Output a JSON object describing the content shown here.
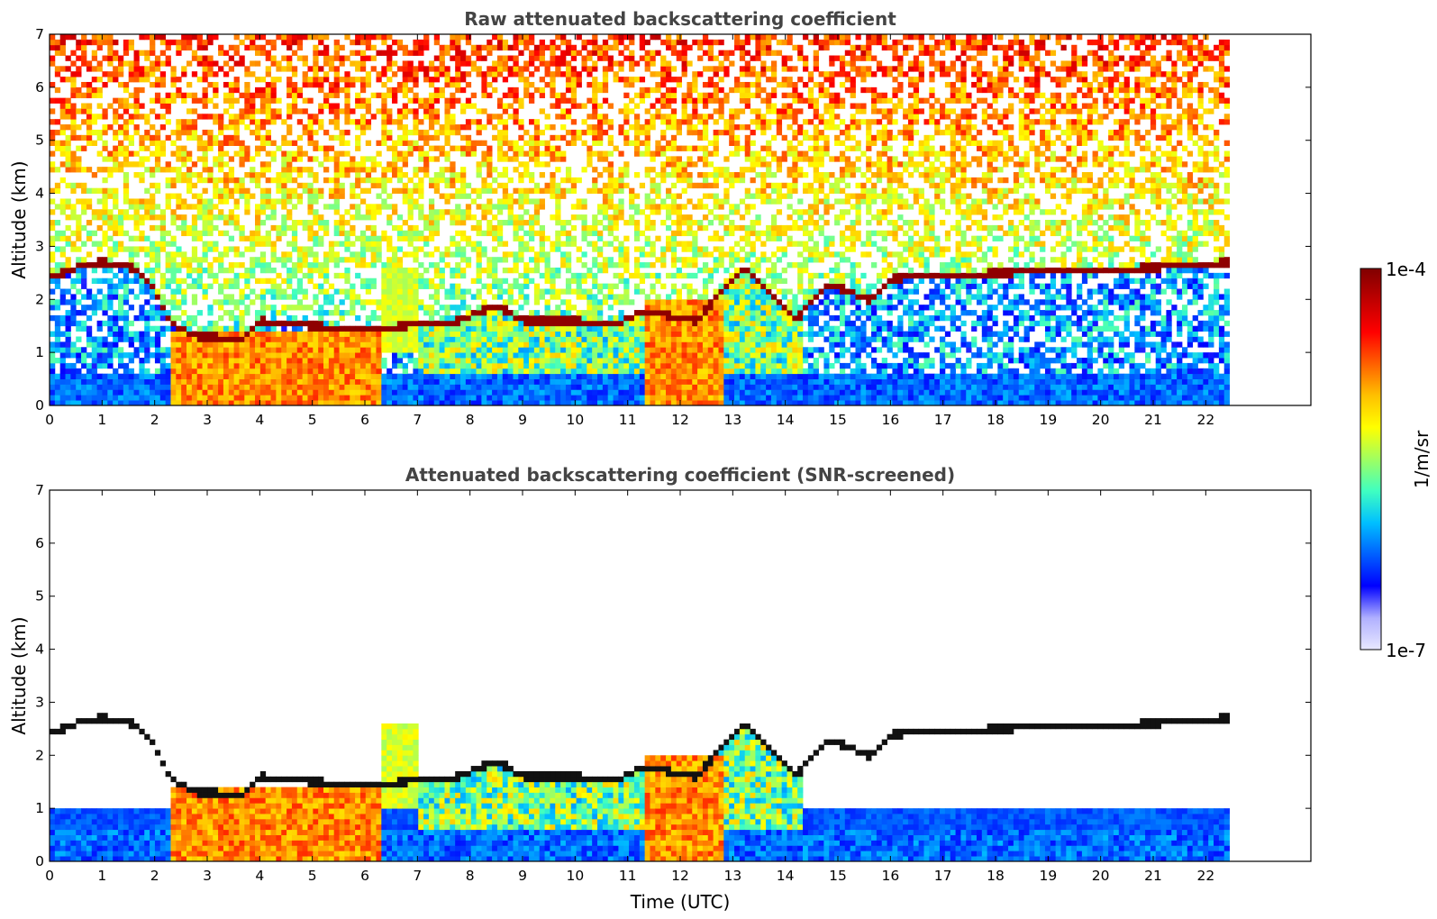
{
  "chart_data": [
    {
      "type": "heatmap",
      "title": "Raw attenuated backscattering coefficient",
      "xlabel": "",
      "ylabel": "Altitude (km)",
      "xlim": [
        0,
        24
      ],
      "ylim": [
        0,
        7
      ],
      "x_ticks": [
        0,
        1,
        2,
        3,
        4,
        5,
        6,
        7,
        8,
        9,
        10,
        11,
        12,
        13,
        14,
        15,
        16,
        17,
        18,
        19,
        20,
        21,
        22
      ],
      "y_ticks": [
        0,
        1,
        2,
        3,
        4,
        5,
        6,
        7
      ],
      "data_extent_x": [
        0,
        22.45
      ],
      "colorbar": {
        "label": "1/m/sr",
        "max_label": "1e-4",
        "min_label": "1e-7",
        "scale": "log"
      },
      "features": {
        "boundary_layer_top_km": [
          [
            0,
            2.4
          ],
          [
            0.5,
            2.6
          ],
          [
            1.0,
            2.7
          ],
          [
            1.6,
            2.6
          ],
          [
            2.0,
            2.2
          ],
          [
            2.3,
            1.55
          ],
          [
            2.8,
            1.3
          ],
          [
            3.7,
            1.28
          ],
          [
            4.0,
            1.6
          ],
          [
            5.0,
            1.5
          ],
          [
            6.2,
            1.45
          ],
          [
            7.8,
            1.6
          ],
          [
            8.5,
            1.9
          ],
          [
            9.0,
            1.6
          ],
          [
            10.0,
            1.6
          ],
          [
            10.8,
            1.55
          ],
          [
            11.3,
            1.8
          ],
          [
            12.3,
            1.6
          ],
          [
            13.2,
            2.6
          ],
          [
            14.2,
            1.6
          ],
          [
            14.8,
            2.3
          ],
          [
            15.6,
            2.0
          ],
          [
            16.0,
            2.4
          ],
          [
            18.0,
            2.5
          ],
          [
            21.0,
            2.6
          ],
          [
            22.4,
            2.7
          ]
        ],
        "dense_aerosol_layers_km": [
          [
            2.3,
            6.3,
            0,
            1.4
          ],
          [
            11.3,
            12.8,
            0,
            2.0
          ]
        ]
      }
    },
    {
      "type": "heatmap",
      "title": "Attenuated backscattering coefficient (SNR-screened)",
      "xlabel": "Time (UTC)",
      "ylabel": "Altitude (km)",
      "xlim": [
        0,
        24
      ],
      "ylim": [
        0,
        7
      ],
      "x_ticks": [
        0,
        1,
        2,
        3,
        4,
        5,
        6,
        7,
        8,
        9,
        10,
        11,
        12,
        13,
        14,
        15,
        16,
        17,
        18,
        19,
        20,
        21,
        22
      ],
      "y_ticks": [
        0,
        1,
        2,
        3,
        4,
        5,
        6,
        7
      ],
      "data_extent_x": [
        0,
        22.45
      ],
      "colorbar": {
        "label": "1/m/sr",
        "max_label": "1e-4",
        "min_label": "1e-7",
        "scale": "log"
      }
    }
  ],
  "colors": {
    "colormap": [
      "#e8e8ff",
      "#b0b0ff",
      "#0000ff",
      "#0060ff",
      "#00c0ff",
      "#40ffc0",
      "#a0ff60",
      "#ffff00",
      "#ffc000",
      "#ff6000",
      "#ff0000",
      "#c00000",
      "#800000"
    ]
  }
}
